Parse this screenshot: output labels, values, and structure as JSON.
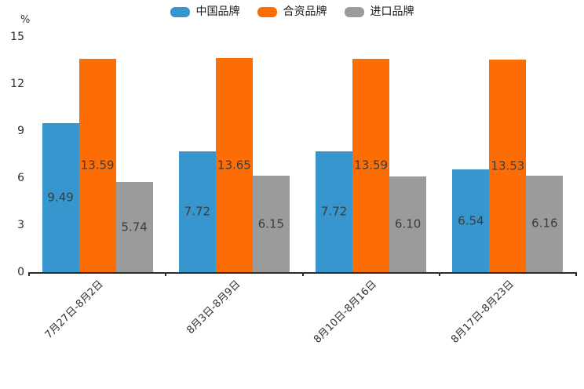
{
  "chart_data": {
    "type": "bar",
    "title": "",
    "xlabel": "",
    "ylabel": "%",
    "ylim": [
      0,
      15
    ],
    "yticks": [
      0,
      3,
      6,
      9,
      12,
      15
    ],
    "grid": false,
    "legend_position": "top",
    "bar_value_labels": "inside-center",
    "x_label_rotation_deg": 45,
    "categories": [
      "7月27日-8月2日",
      "8月3日-8月9日",
      "8月10日-8月16日",
      "8月17日-8月23日"
    ],
    "series": [
      {
        "name": "中国品牌",
        "color": "#3796CD",
        "values": [
          9.49,
          7.72,
          7.72,
          6.54
        ],
        "value_labels": [
          "9.49",
          "7.72",
          "7.72",
          "6.54"
        ]
      },
      {
        "name": "合资品牌",
        "color": "#FC6E05",
        "values": [
          13.59,
          13.65,
          13.59,
          13.53
        ],
        "value_labels": [
          "13.59",
          "13.65",
          "13.59",
          "13.53"
        ]
      },
      {
        "name": "进口品牌",
        "color": "#9B9B9B",
        "values": [
          5.74,
          6.15,
          6.1,
          6.16
        ],
        "value_labels": [
          "5.74",
          "6.15",
          "6.10",
          "6.16"
        ]
      }
    ]
  }
}
